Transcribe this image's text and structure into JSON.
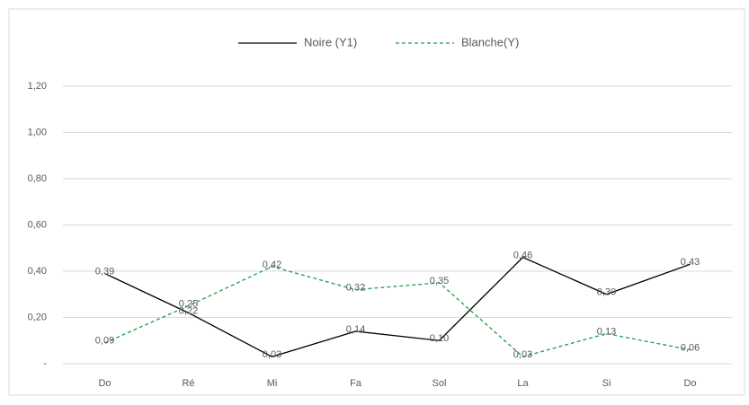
{
  "chart_data": {
    "type": "line",
    "categories": [
      "Do",
      "Ré",
      "Mi",
      "Fa",
      "Sol",
      "La",
      "Si",
      "Do"
    ],
    "series": [
      {
        "name": "Noire (Y1)",
        "color": "#000000",
        "dash": false,
        "values": [
          0.39,
          0.22,
          0.03,
          0.14,
          0.1,
          0.46,
          0.3,
          0.43
        ],
        "value_labels": [
          "0,39",
          "0,22",
          "0,03",
          "0,14",
          "0,10",
          "0,46",
          "0,30",
          "0,43"
        ]
      },
      {
        "name": "Blanche(Y)",
        "color": "#1e9e4a",
        "dash": true,
        "values": [
          0.09,
          0.25,
          0.42,
          0.32,
          0.35,
          0.03,
          0.13,
          0.06
        ],
        "value_labels": [
          "0,09",
          "0,25",
          "0,42",
          "0,32",
          "0,35",
          "0,03",
          "0,13",
          "0,06"
        ]
      }
    ],
    "ylim": [
      0,
      1.2
    ],
    "yticks": [
      {
        "value": 0,
        "label": "-"
      },
      {
        "value": 0.2,
        "label": "0,20"
      },
      {
        "value": 0.4,
        "label": "0,40"
      },
      {
        "value": 0.6,
        "label": "0,60"
      },
      {
        "value": 0.8,
        "label": "0,80"
      },
      {
        "value": 1.0,
        "label": "1,00"
      },
      {
        "value": 1.2,
        "label": "1,20"
      }
    ],
    "grid": true,
    "legend": "top"
  }
}
